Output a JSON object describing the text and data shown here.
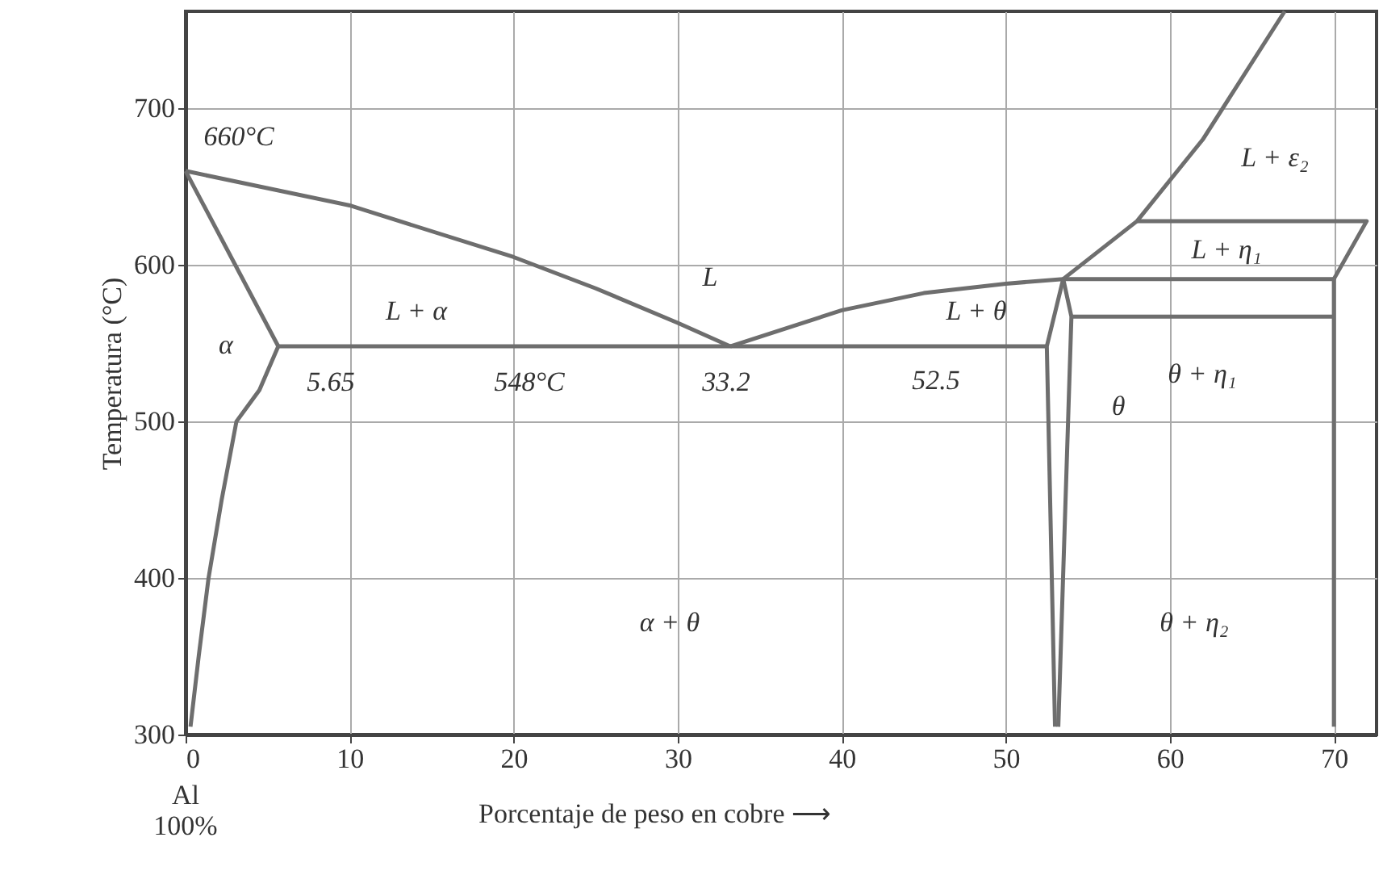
{
  "chart_data": {
    "type": "line",
    "xlabel": "Porcentaje de peso en cobre ⟶",
    "ylabel": "Temperatura (°C)",
    "xlim": [
      0,
      72.6
    ],
    "ylim": [
      300,
      762
    ],
    "xticks": [
      0,
      10,
      20,
      30,
      40,
      50,
      60,
      70
    ],
    "yticks": [
      300,
      400,
      500,
      600,
      700
    ],
    "grid": true,
    "line_style": "solid",
    "marker": "none",
    "series": [
      {
        "color": "#6e6e6e",
        "x": [
          0,
          10,
          20,
          25,
          30,
          33.2
        ],
        "values": [
          660,
          638,
          605,
          585,
          563,
          548
        ]
      },
      {
        "color": "#6e6e6e",
        "x": [
          0,
          5.65
        ],
        "values": [
          660,
          548
        ]
      },
      {
        "color": "#6e6e6e",
        "x": [
          5.65,
          4.5,
          3.1,
          2.2,
          1.4,
          0.8,
          0.3
        ],
        "values": [
          548,
          520,
          500,
          450,
          400,
          350,
          305
        ]
      },
      {
        "color": "#6e6e6e",
        "x": [
          5.65,
          52.5
        ],
        "values": [
          548,
          548
        ]
      },
      {
        "color": "#6e6e6e",
        "x": [
          33.2,
          40,
          45,
          50,
          53.5,
          70
        ],
        "values": [
          548,
          571,
          582,
          588,
          591,
          591
        ]
      },
      {
        "color": "#6e6e6e",
        "x": [
          53,
          52.5,
          53.5
        ],
        "values": [
          305,
          548,
          591
        ]
      },
      {
        "color": "#6e6e6e",
        "x": [
          53.5,
          54,
          53.2
        ],
        "values": [
          591,
          567,
          305
        ]
      },
      {
        "color": "#6e6e6e",
        "x": [
          53.5,
          58,
          62,
          67
        ],
        "values": [
          591,
          628,
          680,
          762
        ]
      },
      {
        "color": "#6e6e6e",
        "x": [
          58,
          72,
          70
        ],
        "values": [
          628,
          628,
          591
        ]
      },
      {
        "color": "#6e6e6e",
        "x": [
          54,
          70
        ],
        "values": [
          567,
          567
        ]
      },
      {
        "color": "#6e6e6e",
        "x": [
          70,
          70
        ],
        "values": [
          591,
          305
        ]
      }
    ],
    "annotations": [
      "660°C",
      "L",
      "L + α",
      "α",
      "5.65",
      "548°C",
      "33.2",
      "L + θ",
      "52.5",
      "θ",
      "L + ε₂",
      "L + η₁",
      "θ + η₁",
      "α + θ",
      "θ + η₂",
      "Al 100%"
    ]
  }
}
